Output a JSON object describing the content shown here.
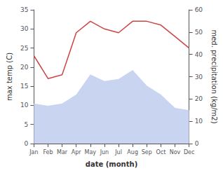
{
  "chart_data": {
    "type": "line",
    "xlabel": "date (month)",
    "ylabel": "max temp (C)",
    "y2label": "med. precipitation (kg/m2)",
    "categories": [
      "Jan",
      "Feb",
      "Mar",
      "Apr",
      "May",
      "Jun",
      "Jul",
      "Aug",
      "Sep",
      "Oct",
      "Nov",
      "Dec"
    ],
    "series": [
      {
        "type": "area",
        "axis": "y2",
        "color": "#c8d4f0",
        "values": [
          18,
          17,
          18,
          22,
          31,
          28,
          29,
          33,
          26,
          22,
          16,
          15
        ]
      },
      {
        "type": "line",
        "color": "#cc4444",
        "values": [
          23,
          17,
          18,
          29,
          32,
          30,
          29,
          32,
          32,
          31,
          28,
          25
        ]
      }
    ],
    "ylim": [
      0,
      35
    ],
    "yticks": [
      0,
      5,
      10,
      15,
      20,
      25,
      30,
      35
    ],
    "y2lim": [
      0,
      60
    ],
    "y2ticks": [
      0,
      10,
      20,
      30,
      40,
      50,
      60
    ],
    "grid": false
  }
}
